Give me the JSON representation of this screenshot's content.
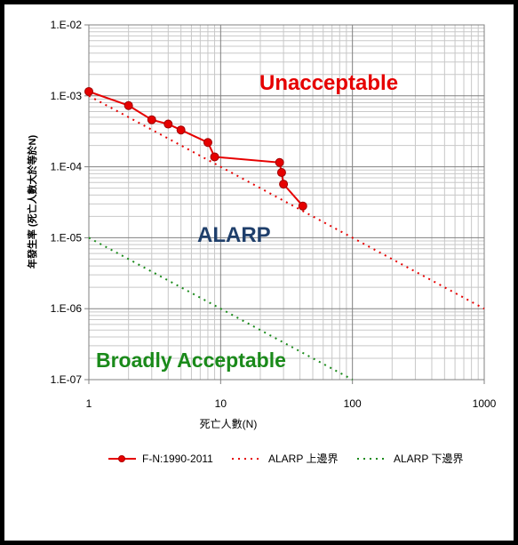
{
  "chart_data": {
    "type": "line",
    "xlabel": "死亡人數(N)",
    "ylabel": "年發生率 (死亡人數大於等於N)",
    "x_scale": "log",
    "y_scale": "log",
    "xlim": [
      1,
      1000
    ],
    "ylim": [
      1e-07,
      0.01
    ],
    "x_ticks": [
      1,
      10,
      100,
      1000
    ],
    "x_tick_labels": [
      "1",
      "10",
      "100",
      "1000"
    ],
    "y_ticks": [
      1e-07,
      1e-06,
      1e-05,
      0.0001,
      0.001,
      0.01
    ],
    "y_tick_labels": [
      "1.E-07",
      "1.E-06",
      "1.E-05",
      "1.E-04",
      "1.E-03",
      "1.E-02"
    ],
    "grid": true,
    "legend_position": "bottom",
    "zones": [
      {
        "label": "Unacceptable",
        "color": "#e60000"
      },
      {
        "label": "ALARP",
        "color": "#1f3f6b"
      },
      {
        "label": "Broadly Acceptable",
        "color": "#1a8a1a"
      }
    ],
    "series": [
      {
        "name": "F-N:1990-2011",
        "style": "solid-with-markers",
        "color": "#e60000",
        "x": [
          1,
          2,
          3,
          4,
          5,
          8,
          9,
          28,
          29,
          30,
          42
        ],
        "y": [
          0.00115,
          0.00073,
          0.00046,
          0.0004,
          0.00033,
          0.00022,
          0.000138,
          0.000115,
          8.3e-05,
          5.7e-05,
          2.8e-05
        ]
      },
      {
        "name": "ALARP 上邊界",
        "style": "dotted",
        "color": "#e60000",
        "x": [
          1,
          1000
        ],
        "y": [
          0.001,
          1e-06
        ]
      },
      {
        "name": "ALARP 下邊界",
        "style": "dotted",
        "color": "#1a8a1a",
        "x": [
          1,
          100
        ],
        "y": [
          1e-05,
          1e-07
        ]
      }
    ]
  }
}
